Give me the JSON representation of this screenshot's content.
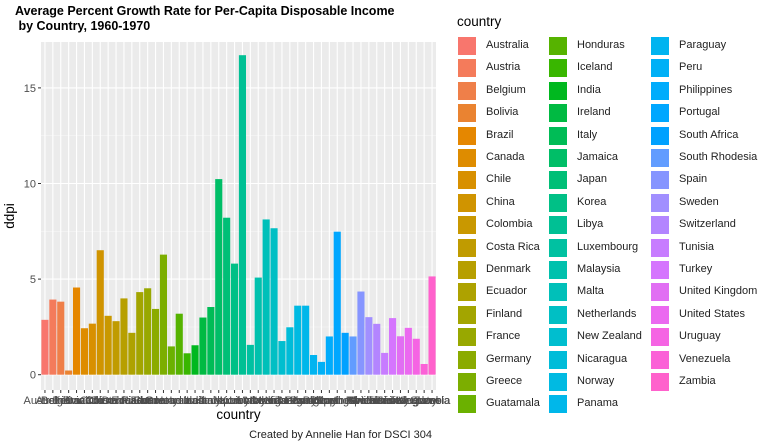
{
  "chart_data": {
    "type": "bar",
    "title": "Average Percent Growth Rate for Per-Capita Disposable Income\n by Country, 1960-1970",
    "xlabel": "country",
    "ylabel": "ddpi",
    "legend_title": "country",
    "caption": "Created by Annelie Han for DSCI 304",
    "ylim": [
      -0.8,
      17.4
    ],
    "y_ticks": [
      0,
      5,
      10,
      15
    ],
    "grid": true,
    "legend_position": "right",
    "categories": [
      "Australia",
      "Austria",
      "Belgium",
      "Bolivia",
      "Brazil",
      "Canada",
      "Chile",
      "China",
      "Colombia",
      "Costa Rica",
      "Denmark",
      "Ecuador",
      "Finland",
      "France",
      "Germany",
      "Greece",
      "Guatamala",
      "Honduras",
      "Iceland",
      "India",
      "Ireland",
      "Italy",
      "Jamaica",
      "Japan",
      "Korea",
      "Libya",
      "Luxembourg",
      "Malaysia",
      "Malta",
      "Netherlands",
      "New Zealand",
      "Nicaragua",
      "Norway",
      "Panama",
      "Paraguay",
      "Peru",
      "Philippines",
      "Portugal",
      "South Africa",
      "South Rhodesia",
      "Spain",
      "Sweden",
      "Switzerland",
      "Tunisia",
      "Turkey",
      "United Kingdom",
      "United States",
      "Uruguay",
      "Venezuela",
      "Zambia"
    ],
    "values": [
      2.87,
      3.93,
      3.82,
      0.22,
      4.56,
      2.43,
      2.67,
      6.51,
      3.08,
      2.8,
      3.99,
      2.19,
      4.32,
      4.52,
      3.44,
      6.28,
      1.48,
      3.19,
      1.12,
      1.54,
      2.99,
      3.54,
      10.23,
      8.21,
      5.81,
      16.71,
      1.56,
      5.08,
      8.12,
      7.66,
      1.76,
      2.48,
      3.61,
      3.61,
      1.03,
      0.67,
      2.0,
      7.48,
      2.19,
      2.0,
      4.35,
      3.01,
      2.66,
      1.14,
      2.96,
      2.01,
      2.45,
      1.88,
      0.56,
      5.14
    ],
    "colors": [
      "#F8766D",
      "#F47B5B",
      "#EF7F49",
      "#EA8331",
      "#E58700",
      "#DE8C00",
      "#D89000",
      "#D09400",
      "#C99800",
      "#C09B00",
      "#B79F00",
      "#AEA200",
      "#A3A500",
      "#98A800",
      "#8BAB00",
      "#7CAE00",
      "#6BB100",
      "#56B300",
      "#39B600",
      "#00B81F",
      "#00BA42",
      "#00BC56",
      "#00BE67",
      "#00BF77",
      "#00C086",
      "#00C094",
      "#00C1A1",
      "#00C1AD",
      "#00C0B9",
      "#00BFC4",
      "#00BECF",
      "#00BCD9",
      "#00BAE2",
      "#00B7EA",
      "#00B4F0",
      "#00B0F6",
      "#00ACFC",
      "#00A7FF",
      "#00A1FF",
      "#619CFF",
      "#8695FF",
      "#A18FFF",
      "#B385FF",
      "#C77CFF",
      "#D575FE",
      "#E16EF3",
      "#EB69F0",
      "#F564E3",
      "#FB61D7",
      "#FF61CC"
    ],
    "legend_colors": [
      "#F8766D",
      "#F47B5B",
      "#EF7F49",
      "#EA8331",
      "#E58700",
      "#DE8C00",
      "#D89000",
      "#D09400",
      "#C99800",
      "#C09B00",
      "#B79F00",
      "#AEA200",
      "#A3A500",
      "#98A800",
      "#8BAB00",
      "#7CAE00",
      "#6BB100",
      "#56B300",
      "#39B600",
      "#00B81F",
      "#00BA42",
      "#00BC56",
      "#00BE67",
      "#00BF77",
      "#00C086",
      "#00C094",
      "#00C1A1",
      "#00C1AD",
      "#00C0B9",
      "#00BFC4",
      "#00BECF",
      "#00BCD9",
      "#00BAE2",
      "#00B7EA",
      "#00B4F0",
      "#00B0F6",
      "#00ACFC",
      "#00A7FF",
      "#00A1FF",
      "#619CFF",
      "#8695FF",
      "#A18FFF",
      "#B385FF",
      "#C77CFF",
      "#D575FE",
      "#E16EF3",
      "#EB69F0",
      "#F564E3",
      "#FB61D7",
      "#FF61CC"
    ]
  }
}
